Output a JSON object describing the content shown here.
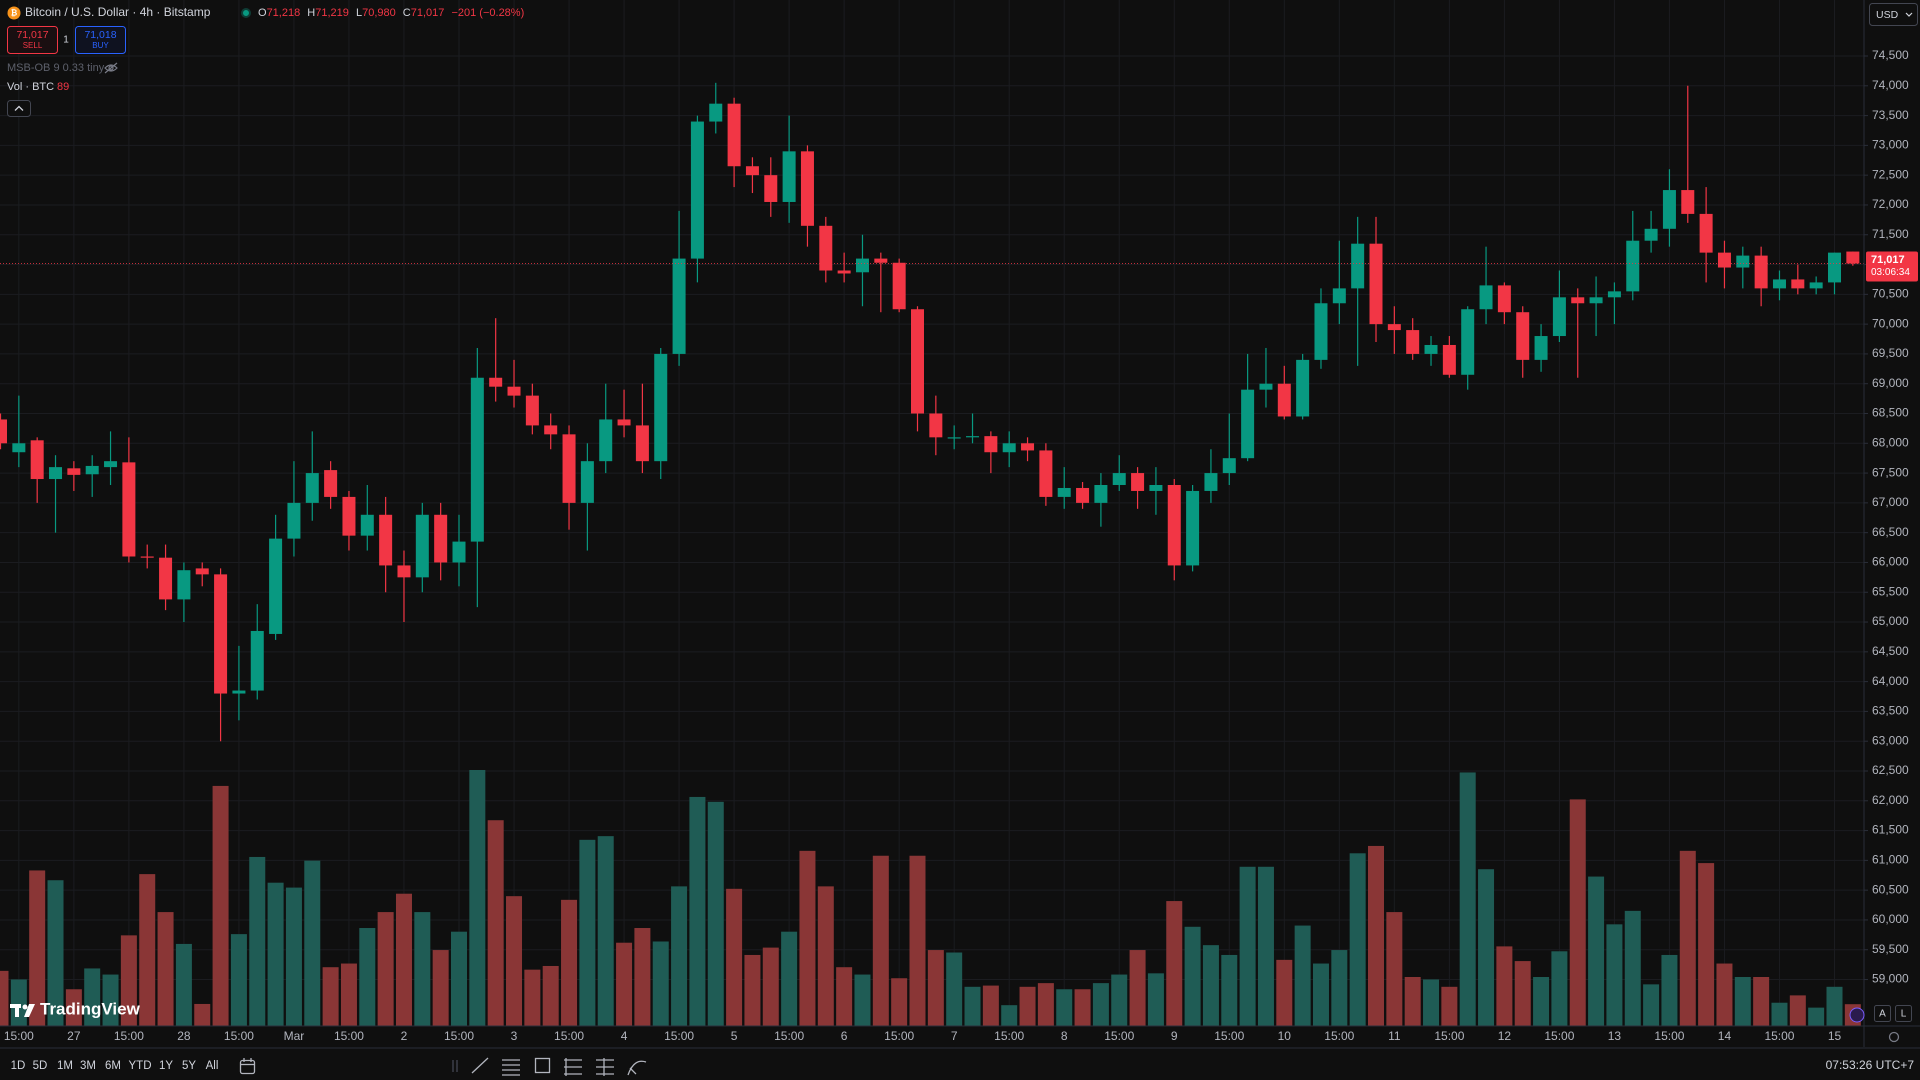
{
  "chart_data": {
    "type": "candlestick",
    "title": "Bitcoin / U.S. Dollar · 4h · Bitstamp",
    "up_color": "#089981",
    "down_color": "#f23645",
    "volume_up_color": "#1f5c55",
    "volume_down_color": "#8a3636",
    "grid": true,
    "open": [
      68400,
      67850,
      68050,
      67400,
      67580,
      67480,
      67600,
      67680,
      66100,
      66080,
      65380,
      65900,
      65800,
      63800,
      63850,
      64800,
      66400,
      67000,
      67550,
      67100,
      66450,
      66800,
      65950,
      65750,
      66800,
      66000,
      66350,
      69100,
      68950,
      68800,
      68300,
      68150,
      67000,
      67700,
      68400,
      68300,
      67700,
      69500,
      71100,
      73400,
      73700,
      72650,
      72500,
      72050,
      72900,
      71650,
      70900,
      70870,
      71100,
      71030,
      70250,
      68500,
      68080,
      68100,
      68120,
      67850,
      68000,
      67880,
      67100,
      67250,
      67000,
      67300,
      67500,
      67200,
      67300,
      65950,
      67200,
      67500,
      67750,
      68900,
      69000,
      68450,
      69400,
      70350,
      70600,
      71350,
      70000,
      69900,
      69500,
      69650,
      69150,
      70250,
      70650,
      70200,
      69400,
      69800,
      70450,
      70350,
      70450,
      70550,
      71400,
      71600,
      72250,
      71850,
      71200,
      70950,
      71150,
      70600,
      70750,
      70600,
      70700,
      71218
    ],
    "high": [
      68500,
      68800,
      68100,
      67800,
      67700,
      67800,
      68200,
      68100,
      66300,
      66300,
      66000,
      66000,
      65900,
      64600,
      65300,
      66800,
      67700,
      68200,
      67700,
      67200,
      67300,
      67100,
      66200,
      67000,
      67000,
      66800,
      69600,
      70100,
      69400,
      69000,
      68500,
      68300,
      68000,
      69000,
      68900,
      69000,
      69600,
      71900,
      73500,
      74050,
      73800,
      72800,
      72800,
      73500,
      73000,
      71800,
      71200,
      71500,
      71200,
      71100,
      70300,
      68800,
      68300,
      68500,
      68200,
      68200,
      68100,
      68000,
      67600,
      67350,
      67500,
      67800,
      67600,
      67600,
      67400,
      67300,
      67900,
      68500,
      69500,
      69600,
      69300,
      69500,
      70600,
      71400,
      71800,
      71800,
      70300,
      70100,
      69800,
      69800,
      70300,
      71300,
      70700,
      70300,
      70000,
      70900,
      70600,
      70800,
      70700,
      71900,
      71900,
      72600,
      74000,
      72300,
      71400,
      71300,
      71300,
      70900,
      71000,
      70800,
      71200,
      71219
    ],
    "low": [
      67900,
      67600,
      67000,
      66500,
      67200,
      67100,
      67300,
      66000,
      65900,
      65200,
      65000,
      65600,
      63000,
      63350,
      63700,
      64700,
      66100,
      66700,
      66900,
      66200,
      66200,
      65500,
      65000,
      65500,
      65700,
      65600,
      65250,
      68700,
      68600,
      68150,
      67900,
      66550,
      66200,
      67500,
      68100,
      67500,
      67400,
      69300,
      70700,
      73200,
      72300,
      72200,
      71800,
      71700,
      71300,
      70700,
      70700,
      70300,
      70200,
      70200,
      68200,
      67800,
      67900,
      68000,
      67500,
      67600,
      67700,
      66950,
      66900,
      66900,
      66600,
      67200,
      66900,
      66800,
      65700,
      65850,
      67000,
      67300,
      67700,
      68600,
      68400,
      68400,
      69250,
      70000,
      69300,
      69700,
      69500,
      69400,
      69300,
      69100,
      68900,
      70000,
      70000,
      69100,
      69200,
      69700,
      69100,
      69800,
      70000,
      70400,
      71200,
      71300,
      71700,
      70700,
      70600,
      70600,
      70300,
      70400,
      70500,
      70500,
      70500,
      70980
    ],
    "close": [
      68000,
      68000,
      67400,
      67600,
      67470,
      67620,
      67700,
      66100,
      66080,
      65380,
      65870,
      65800,
      63800,
      63850,
      64850,
      66400,
      67000,
      67500,
      67100,
      66450,
      66800,
      65950,
      65750,
      66800,
      66000,
      66350,
      69100,
      68950,
      68800,
      68300,
      68150,
      67000,
      67700,
      68400,
      68300,
      67700,
      69500,
      71100,
      73400,
      73700,
      72650,
      72500,
      72050,
      72900,
      71650,
      70900,
      70850,
      71100,
      71030,
      70250,
      68500,
      68100,
      68100,
      68120,
      67850,
      68000,
      67880,
      67100,
      67250,
      67000,
      67300,
      67500,
      67200,
      67300,
      65950,
      67200,
      67500,
      67750,
      68900,
      69000,
      68450,
      69400,
      70350,
      70600,
      71350,
      70000,
      69900,
      69500,
      69650,
      69150,
      70250,
      70650,
      70200,
      69400,
      69800,
      70450,
      70350,
      70450,
      70550,
      71400,
      71600,
      72250,
      71850,
      71200,
      70950,
      71150,
      70600,
      70750,
      70600,
      70700,
      71200,
      71017
    ],
    "volume": [
      225,
      190,
      635,
      595,
      150,
      235,
      210,
      370,
      620,
      465,
      335,
      90,
      980,
      375,
      690,
      585,
      565,
      675,
      240,
      255,
      400,
      465,
      540,
      465,
      310,
      385,
      1045,
      840,
      530,
      230,
      245,
      515,
      760,
      775,
      340,
      400,
      345,
      570,
      935,
      915,
      560,
      290,
      320,
      385,
      715,
      570,
      240,
      210,
      695,
      195,
      695,
      310,
      300,
      160,
      165,
      85,
      160,
      175,
      150,
      150,
      175,
      210,
      310,
      215,
      510,
      405,
      330,
      290,
      650,
      650,
      270,
      410,
      255,
      310,
      705,
      735,
      465,
      200,
      190,
      160,
      1035,
      640,
      325,
      265,
      200,
      305,
      925,
      610,
      415,
      470,
      170,
      290,
      715,
      665,
      255,
      200,
      200,
      95,
      125,
      75,
      160,
      89
    ],
    "last_value_label": "71,017",
    "countdown": "03:06:34",
    "ylim": [
      58220,
      75440
    ],
    "yticks": [
      {
        "value": 59000,
        "label": "59,000"
      },
      {
        "value": 59500,
        "label": "59,500"
      },
      {
        "value": 60000,
        "label": "60,000"
      },
      {
        "value": 60500,
        "label": "60,500"
      },
      {
        "value": 61000,
        "label": "61,000"
      },
      {
        "value": 61500,
        "label": "61,500"
      },
      {
        "value": 62000,
        "label": "62,000"
      },
      {
        "value": 62500,
        "label": "62,500"
      },
      {
        "value": 63000,
        "label": "63,000"
      },
      {
        "value": 63500,
        "label": "63,500"
      },
      {
        "value": 64000,
        "label": "64,000"
      },
      {
        "value": 64500,
        "label": "64,500"
      },
      {
        "value": 65000,
        "label": "65,000"
      },
      {
        "value": 65500,
        "label": "65,500"
      },
      {
        "value": 66000,
        "label": "66,000"
      },
      {
        "value": 66500,
        "label": "66,500"
      },
      {
        "value": 67000,
        "label": "67,000"
      },
      {
        "value": 67500,
        "label": "67,500"
      },
      {
        "value": 68000,
        "label": "68,000"
      },
      {
        "value": 68500,
        "label": "68,500"
      },
      {
        "value": 69000,
        "label": "69,000"
      },
      {
        "value": 69500,
        "label": "69,500"
      },
      {
        "value": 70000,
        "label": "70,000"
      },
      {
        "value": 70500,
        "label": "70,500"
      },
      {
        "value": 71000,
        "label": "71,000"
      },
      {
        "value": 71500,
        "label": "71,500"
      },
      {
        "value": 72000,
        "label": "72,000"
      },
      {
        "value": 72500,
        "label": "72,500"
      },
      {
        "value": 73000,
        "label": "73,000"
      },
      {
        "value": 73500,
        "label": "73,500"
      },
      {
        "value": 74000,
        "label": "74,000"
      },
      {
        "value": 74500,
        "label": "74,500"
      }
    ],
    "xticks": [
      {
        "value": 1,
        "label": "15:00"
      },
      {
        "value": 4,
        "label": "27"
      },
      {
        "value": 7,
        "label": "15:00"
      },
      {
        "value": 10,
        "label": "28"
      },
      {
        "value": 13,
        "label": "15:00"
      },
      {
        "value": 16,
        "label": "Mar"
      },
      {
        "value": 19,
        "label": "15:00"
      },
      {
        "value": 22,
        "label": "2"
      },
      {
        "value": 25,
        "label": "15:00"
      },
      {
        "value": 28,
        "label": "3"
      },
      {
        "value": 31,
        "label": "15:00"
      },
      {
        "value": 34,
        "label": "4"
      },
      {
        "value": 37,
        "label": "15:00"
      },
      {
        "value": 40,
        "label": "5"
      },
      {
        "value": 43,
        "label": "15:00"
      },
      {
        "value": 46,
        "label": "6"
      },
      {
        "value": 49,
        "label": "15:00"
      },
      {
        "value": 52,
        "label": "7"
      },
      {
        "value": 55,
        "label": "15:00"
      },
      {
        "value": 58,
        "label": "8"
      },
      {
        "value": 61,
        "label": "15:00"
      },
      {
        "value": 64,
        "label": "9"
      },
      {
        "value": 67,
        "label": "15:00"
      },
      {
        "value": 70,
        "label": "10"
      },
      {
        "value": 73,
        "label": "15:00"
      },
      {
        "value": 76,
        "label": "11"
      },
      {
        "value": 79,
        "label": "15:00"
      },
      {
        "value": 82,
        "label": "12"
      },
      {
        "value": 85,
        "label": "15:00"
      },
      {
        "value": 88,
        "label": "13"
      },
      {
        "value": 91,
        "label": "15:00"
      },
      {
        "value": 94,
        "label": "14"
      },
      {
        "value": 97,
        "label": "15:00"
      },
      {
        "value": 100,
        "label": "15"
      }
    ]
  },
  "ui": {
    "legend": {
      "items": [
        {
          "key": "O",
          "value": "71,218"
        },
        {
          "key": "H",
          "value": "71,219"
        },
        {
          "key": "L",
          "value": "70,980"
        },
        {
          "key": "C",
          "value": "71,017"
        }
      ],
      "change": "−201 (−0.28%)"
    },
    "trade": {
      "sell_price": "71,017",
      "sell": "SELL",
      "spread": "1",
      "buy_price": "71,018",
      "buy": "BUY"
    },
    "indicator": "MSB-OB 9 0.33 tiny",
    "volume_label": "Vol · BTC",
    "currency": "USD",
    "brand": "TradingView",
    "scale_buttons": [
      "A",
      "L"
    ],
    "ranges": [
      "1D",
      "5D",
      "1M",
      "3M",
      "6M",
      "YTD",
      "1Y",
      "5Y",
      "All"
    ],
    "clock": "07:53:26 UTC+7"
  }
}
